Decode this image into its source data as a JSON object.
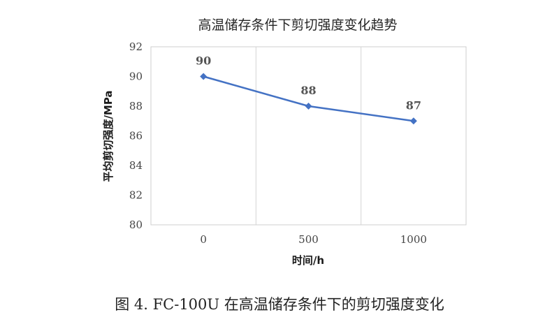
{
  "chart_data": {
    "type": "line",
    "title": "高温储存条件下剪切强度变化趋势",
    "xlabel": "时间/h",
    "ylabel": "平均剪切强度/MPa",
    "categories": [
      "0",
      "500",
      "1000"
    ],
    "series": [
      {
        "values": [
          90,
          88,
          87
        ],
        "color": "#4472C4"
      }
    ],
    "data_labels": [
      "90",
      "88",
      "87"
    ],
    "ylim": [
      80,
      92
    ],
    "y_ticks": [
      "80",
      "82",
      "84",
      "86",
      "88",
      "90",
      "92"
    ],
    "grid": "vertical",
    "legend": "none"
  },
  "caption": "图 4. FC-100U 在高温储存条件下的剪切强度变化"
}
